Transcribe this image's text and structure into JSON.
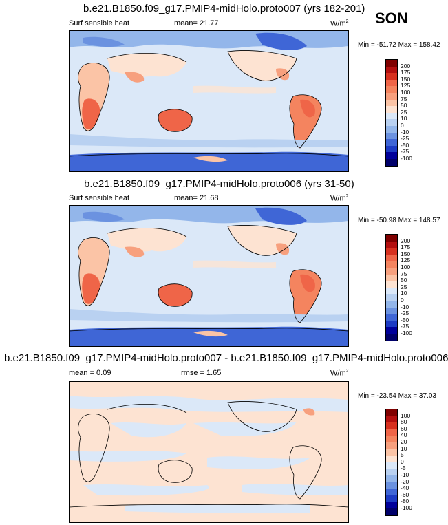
{
  "season": "SON",
  "panels": [
    {
      "title": "b.e21.B1850.f09_g17.PMIP4-midHolo.proto007 (yrs 182-201)",
      "left_label": "Surf sensible heat",
      "center_label": "mean=  21.77",
      "units": "W/m",
      "units_sup": "2",
      "minmax": "Min = -51.72 Max = 158.42",
      "colorbar_levels": [
        "200",
        "175",
        "150",
        "125",
        "100",
        "75",
        "50",
        "25",
        "10",
        "0",
        "-10",
        "-25",
        "-50",
        "-75",
        "-100"
      ]
    },
    {
      "title": "b.e21.B1850.f09_g17.PMIP4-midHolo.proto006 (yrs 31-50)",
      "left_label": "Surf sensible heat",
      "center_label": "mean=  21.68",
      "units": "W/m",
      "units_sup": "2",
      "minmax": "Min = -50.98 Max = 148.57",
      "colorbar_levels": [
        "200",
        "175",
        "150",
        "125",
        "100",
        "75",
        "50",
        "25",
        "10",
        "0",
        "-10",
        "-25",
        "-50",
        "-75",
        "-100"
      ]
    },
    {
      "title": "b.e21.B1850.f09_g17.PMIP4-midHolo.proto007 - b.e21.B1850.f09_g17.PMIP4-midHolo.proto006",
      "left_label": "mean =   0.09",
      "center_label": "rmse =   1.65",
      "units": "W/m",
      "units_sup": "2",
      "minmax": "Min = -23.54 Max = 37.03",
      "colorbar_levels": [
        "100",
        "80",
        "60",
        "40",
        "20",
        "10",
        "5",
        "0",
        "-5",
        "-10",
        "-20",
        "-40",
        "-60",
        "-80",
        "-100"
      ]
    }
  ],
  "colorbar_colors": [
    "#7f0000",
    "#b30f0f",
    "#d7301f",
    "#ef6548",
    "#f4845f",
    "#f7a07e",
    "#fbc4a6",
    "#fde3d2",
    "#dbe8f8",
    "#b9d1f1",
    "#93b6ea",
    "#6b92e0",
    "#3f66d6",
    "#1c3bc4",
    "#00009a",
    "#00006a"
  ],
  "chart_data": [
    {
      "type": "heatmap",
      "title": "b.e21.B1850.f09_g17.PMIP4-midHolo.proto007 (yrs 182-201)",
      "variable": "Surf sensible heat",
      "units": "W/m2",
      "season": "SON",
      "mean": 21.77,
      "min": -51.72,
      "max": 158.42,
      "contour_levels": [
        -100,
        -75,
        -50,
        -25,
        -10,
        0,
        10,
        25,
        50,
        75,
        100,
        125,
        150,
        175,
        200
      ]
    },
    {
      "type": "heatmap",
      "title": "b.e21.B1850.f09_g17.PMIP4-midHolo.proto006 (yrs 31-50)",
      "variable": "Surf sensible heat",
      "units": "W/m2",
      "season": "SON",
      "mean": 21.68,
      "min": -50.98,
      "max": 148.57,
      "contour_levels": [
        -100,
        -75,
        -50,
        -25,
        -10,
        0,
        10,
        25,
        50,
        75,
        100,
        125,
        150,
        175,
        200
      ]
    },
    {
      "type": "heatmap",
      "title": "b.e21.B1850.f09_g17.PMIP4-midHolo.proto007 - b.e21.B1850.f09_g17.PMIP4-midHolo.proto006",
      "units": "W/m2",
      "season": "SON",
      "mean": 0.09,
      "rmse": 1.65,
      "min": -23.54,
      "max": 37.03,
      "contour_levels": [
        -100,
        -80,
        -60,
        -40,
        -20,
        -10,
        -5,
        0,
        5,
        10,
        20,
        40,
        60,
        80,
        100
      ]
    }
  ]
}
